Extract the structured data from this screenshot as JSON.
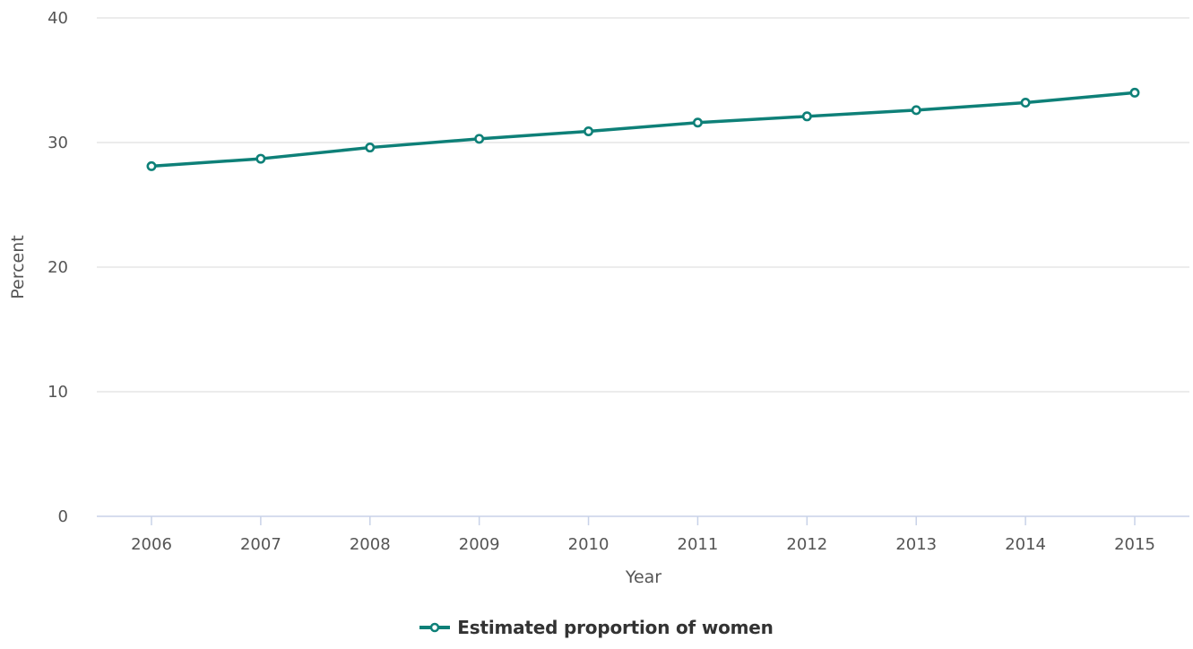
{
  "chart_data": {
    "type": "line",
    "title": "",
    "xlabel": "Year",
    "ylabel": "Percent",
    "categories": [
      "2006",
      "2007",
      "2008",
      "2009",
      "2010",
      "2011",
      "2012",
      "2013",
      "2014",
      "2015"
    ],
    "ylim": [
      0,
      40
    ],
    "yticks": [
      "0",
      "10",
      "20",
      "30",
      "40"
    ],
    "grid": true,
    "legend_position": "bottom-center",
    "series": [
      {
        "name": "Estimated proportion of women",
        "color": "#0e8078",
        "values": [
          28.1,
          28.7,
          29.6,
          30.3,
          30.9,
          31.6,
          32.1,
          32.6,
          33.2,
          34.0
        ]
      }
    ]
  }
}
